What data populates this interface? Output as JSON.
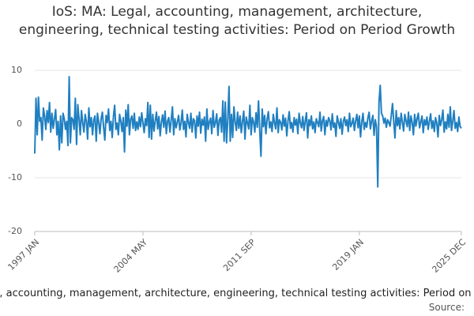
{
  "chart_data": {
    "type": "line",
    "title": "IoS: MA: Legal, accounting, management, architecture, engineering, technical testing activities: Period on Period Growth",
    "source_label": "Source:",
    "categories": [
      "1997 JAN",
      null,
      null,
      null,
      null,
      null,
      null,
      null,
      null,
      null,
      null,
      null,
      null,
      null,
      null,
      null,
      null,
      null,
      null,
      null,
      null,
      null,
      null,
      null,
      null,
      null,
      null,
      null,
      null,
      null,
      null,
      null,
      null,
      null,
      null,
      null,
      null,
      null,
      null,
      null,
      null,
      null,
      null,
      null,
      null,
      null,
      null,
      null,
      null,
      null,
      null,
      null,
      null,
      null,
      null,
      null,
      null,
      null,
      null,
      null,
      null,
      null,
      null,
      null,
      null,
      null,
      null,
      null,
      null,
      null,
      null,
      null,
      null,
      null,
      null,
      null,
      null,
      null,
      null,
      null,
      null,
      null,
      null,
      null,
      null,
      null,
      null,
      null,
      "2004 MAY",
      null,
      null,
      null,
      null,
      null,
      null,
      null,
      null,
      null,
      null,
      null,
      null,
      null,
      null,
      null,
      null,
      null,
      null,
      null,
      null,
      null,
      null,
      null,
      null,
      null,
      null,
      null,
      null,
      null,
      null,
      null,
      null,
      null,
      null,
      null,
      null,
      null,
      null,
      null,
      null,
      null,
      null,
      null,
      null,
      null,
      null,
      null,
      null,
      null,
      null,
      null,
      null,
      null,
      null,
      null,
      null,
      null,
      null,
      null,
      null,
      null,
      null,
      null,
      null,
      null,
      null,
      null,
      null,
      null,
      null,
      null,
      null,
      null,
      null,
      null,
      null,
      null,
      null,
      null,
      null,
      null,
      null,
      null,
      null,
      null,
      null,
      null,
      "2011 SEP",
      null,
      null,
      null,
      null,
      null,
      null,
      null,
      null,
      null,
      null,
      null,
      null,
      null,
      null,
      null,
      null,
      null,
      null,
      null,
      null,
      null,
      null,
      null,
      null,
      null,
      null,
      null,
      null,
      null,
      null,
      null,
      null,
      null,
      null,
      null,
      null,
      null,
      null,
      null,
      null,
      null,
      null,
      null,
      null,
      null,
      null,
      null,
      null,
      null,
      null,
      null,
      null,
      null,
      null,
      null,
      null,
      null,
      null,
      null,
      null,
      null,
      null,
      null,
      null,
      null,
      null,
      null,
      null,
      null,
      null,
      null,
      null,
      null,
      null,
      null,
      null,
      null,
      null,
      null,
      null,
      null,
      null,
      null,
      null,
      null,
      null,
      null,
      "2019 JAN",
      null,
      null,
      null,
      null,
      null,
      null,
      null,
      null,
      null,
      null,
      null,
      null,
      null,
      null,
      null,
      null,
      null,
      null,
      null,
      null,
      null,
      null,
      null,
      null,
      null,
      null,
      null,
      null,
      null,
      null,
      null,
      null,
      null,
      null,
      null,
      null,
      null,
      null,
      null,
      null,
      null,
      null,
      null,
      null,
      null,
      null,
      null,
      null,
      null,
      null,
      null,
      null,
      null,
      null,
      null,
      null,
      null,
      null,
      null,
      null,
      null,
      null,
      null,
      null,
      null,
      null,
      null,
      null,
      null,
      null,
      null,
      null,
      null,
      null,
      null,
      null,
      null,
      null,
      null,
      null,
      null,
      null,
      "2025 DEC"
    ],
    "series": [
      {
        "color": "#1f7fc1",
        "values": [
          -5.5,
          4.8,
          -2,
          5,
          0.5,
          1.2,
          -3,
          3,
          1.5,
          -1,
          2.5,
          0.3,
          4,
          -1.5,
          2,
          -0.8,
          1,
          2.7,
          -2,
          0.5,
          -4.8,
          1.5,
          -3.5,
          2,
          1,
          -1,
          0.5,
          -4,
          8.8,
          -3.5,
          1.2,
          0.8,
          -1,
          4.8,
          -3.8,
          3.6,
          1,
          -2,
          2.5,
          0.3,
          -1.5,
          1.8,
          0.5,
          -2.8,
          3,
          -0.5,
          1.2,
          -2,
          0.8,
          1.5,
          -3.2,
          2,
          0.4,
          -1.8,
          1,
          2.2,
          -0.6,
          -3,
          1.6,
          0.3,
          2.8,
          -1.2,
          0.5,
          -2.5,
          1.4,
          3.5,
          -1,
          0.2,
          -2,
          1.8,
          0.6,
          -1.4,
          1.2,
          -5.2,
          2.6,
          -0.4,
          3.6,
          -2,
          0.9,
          1.5,
          -0.8,
          2,
          -1.2,
          0.4,
          -1,
          1.3,
          -0.5,
          2.1,
          0.2,
          -1.6,
          1,
          -0.3,
          4,
          -2.5,
          3.5,
          -2.8,
          1.8,
          -1.3,
          0.6,
          2.2,
          -0.9,
          1.4,
          -2.2,
          0.3,
          1.7,
          -0.6,
          2.4,
          -1.8,
          0.5,
          1.2,
          -1.5,
          0.8,
          3.2,
          -2,
          1,
          -0.7,
          0.4,
          1.6,
          -1.1,
          0.2,
          2.6,
          -1,
          0.5,
          -2.4,
          1.8,
          0.3,
          -0.8,
          2,
          -1.5,
          1,
          0.6,
          -2.6,
          1.5,
          -0.4,
          2.2,
          -1.7,
          0.9,
          -0.2,
          1.3,
          -3.2,
          2.8,
          -1,
          0.4,
          1.1,
          -1.8,
          2.5,
          -0.6,
          0.3,
          1.9,
          -2.1,
          0.7,
          1.2,
          -1.5,
          4.3,
          -3.2,
          4.1,
          -3.5,
          0.8,
          7,
          -3.2,
          1.8,
          -2.5,
          3.2,
          0.4,
          -1.2,
          2.2,
          -0.8,
          1.5,
          -1.6,
          0.6,
          2.4,
          -2.8,
          1.3,
          0.2,
          -0.9,
          3.5,
          -2,
          1.2,
          0.4,
          -1.5,
          2.1,
          -0.6,
          4.3,
          -1.2,
          -6,
          2.8,
          -0.5,
          1.6,
          -1.8,
          0.9,
          2.3,
          -0.7,
          0.4,
          -1.4,
          1.8,
          0.2,
          -0.9,
          3,
          -1.6,
          0.8,
          0.3,
          -1.1,
          1.7,
          -0.4,
          1.1,
          -2.2,
          0.6,
          2.3,
          -0.8,
          0.3,
          -1.5,
          1.2,
          -0.2,
          0.9,
          -1.8,
          2,
          0.2,
          -0.7,
          1.4,
          -1.2,
          0.5,
          2.1,
          -2.6,
          0.8,
          -0.3,
          1.5,
          -0.9,
          0.4,
          -1.6,
          1,
          0.3,
          -0.5,
          2.2,
          -1.3,
          0.6,
          1.4,
          -2,
          0.7,
          -0.4,
          1.2,
          0.6,
          -1.1,
          1.9,
          -0.6,
          0.2,
          -2.3,
          1.5,
          0.4,
          -0.8,
          1,
          -1.9,
          0.5,
          1.3,
          -0.3,
          0.8,
          -1.4,
          2,
          -0.5,
          0.1,
          1.1,
          -1.2,
          0.6,
          1.8,
          -0.7,
          1.5,
          -2.4,
          0.4,
          2,
          -1,
          0.3,
          -0.6,
          1.2,
          2.2,
          -0.9,
          0.5,
          1.6,
          -2.1,
          0.8,
          -0.5,
          -11.7,
          4,
          7.2,
          2,
          1.5,
          0.2,
          1.1,
          -0.6,
          0.8,
          0.3,
          -0.4,
          1.6,
          3.8,
          0.5,
          -2.6,
          2.5,
          -0.3,
          1.2,
          -0.9,
          2,
          0.4,
          -1.3,
          1.8,
          0.6,
          -0.5,
          2.2,
          -1.2,
          1.5,
          0.3,
          -2,
          1.8,
          -0.4,
          1,
          2,
          -0.7,
          0.4,
          1.5,
          -1.6,
          0.8,
          -0.2,
          1.3,
          -1,
          0.5,
          1.9,
          -0.8,
          0.6,
          -1.4,
          1.2,
          0.2,
          -2.4,
          1.6,
          -0.3,
          0.8,
          2.6,
          -1.5,
          0.4,
          -0.9,
          1.8,
          -0.6,
          3.2,
          -1.2,
          0.5,
          2.5,
          -0.8,
          0.3,
          -1.4,
          1.3,
          -0.5,
          -0.8
        ]
      }
    ],
    "ylim": [
      -20,
      10
    ],
    "yticks": [
      -20,
      -10,
      0,
      10
    ],
    "grid": true
  }
}
